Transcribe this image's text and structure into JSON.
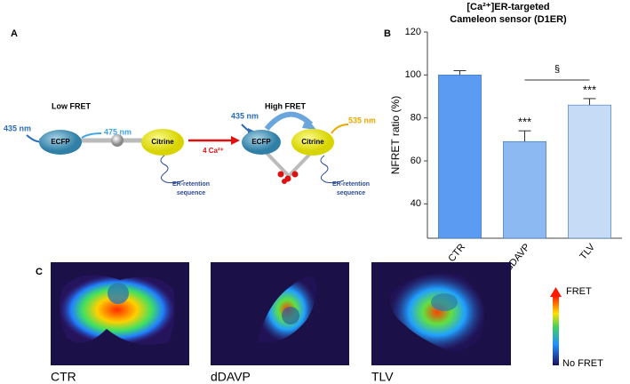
{
  "panel_labels": [
    "A",
    "B",
    "C"
  ],
  "diagram": {
    "low_fret": "Low FRET",
    "high_fret": "High FRET",
    "excitation_left": "435 nm",
    "emission_left": "475 nm",
    "excitation_right": "435 nm",
    "emission_right": "535 nm",
    "donor_left": "ECFP",
    "acceptor_left": "Citrine",
    "donor_right": "ECFP",
    "acceptor_right": "Citrine",
    "retention_left": [
      "ER-retention",
      "sequence"
    ],
    "retention_right": [
      "ER-retention",
      "sequence"
    ],
    "calcium": "4 Ca²⁺"
  },
  "chart_data": {
    "type": "bar",
    "title": [
      "[Ca²⁺]ER-targeted",
      "Cameleon sensor (D1ER)"
    ],
    "y_label": "NFRET ratio (%)",
    "categories": [
      "CTR",
      "dDAVP",
      "TLV"
    ],
    "values": [
      100,
      69,
      86
    ],
    "errors": [
      2,
      5,
      3
    ],
    "colors": [
      "#5b9cf2",
      "#8db9f2",
      "#c6dbf6"
    ],
    "ylim": [
      24,
      120
    ],
    "yticks": [
      40,
      60,
      80,
      100,
      120
    ],
    "annotations": [
      "***",
      "***",
      "§"
    ]
  },
  "images": {
    "labels": [
      "CTR",
      "dDAVP",
      "TLV"
    ],
    "scale_top": "FRET",
    "scale_bottom": "No FRET"
  }
}
